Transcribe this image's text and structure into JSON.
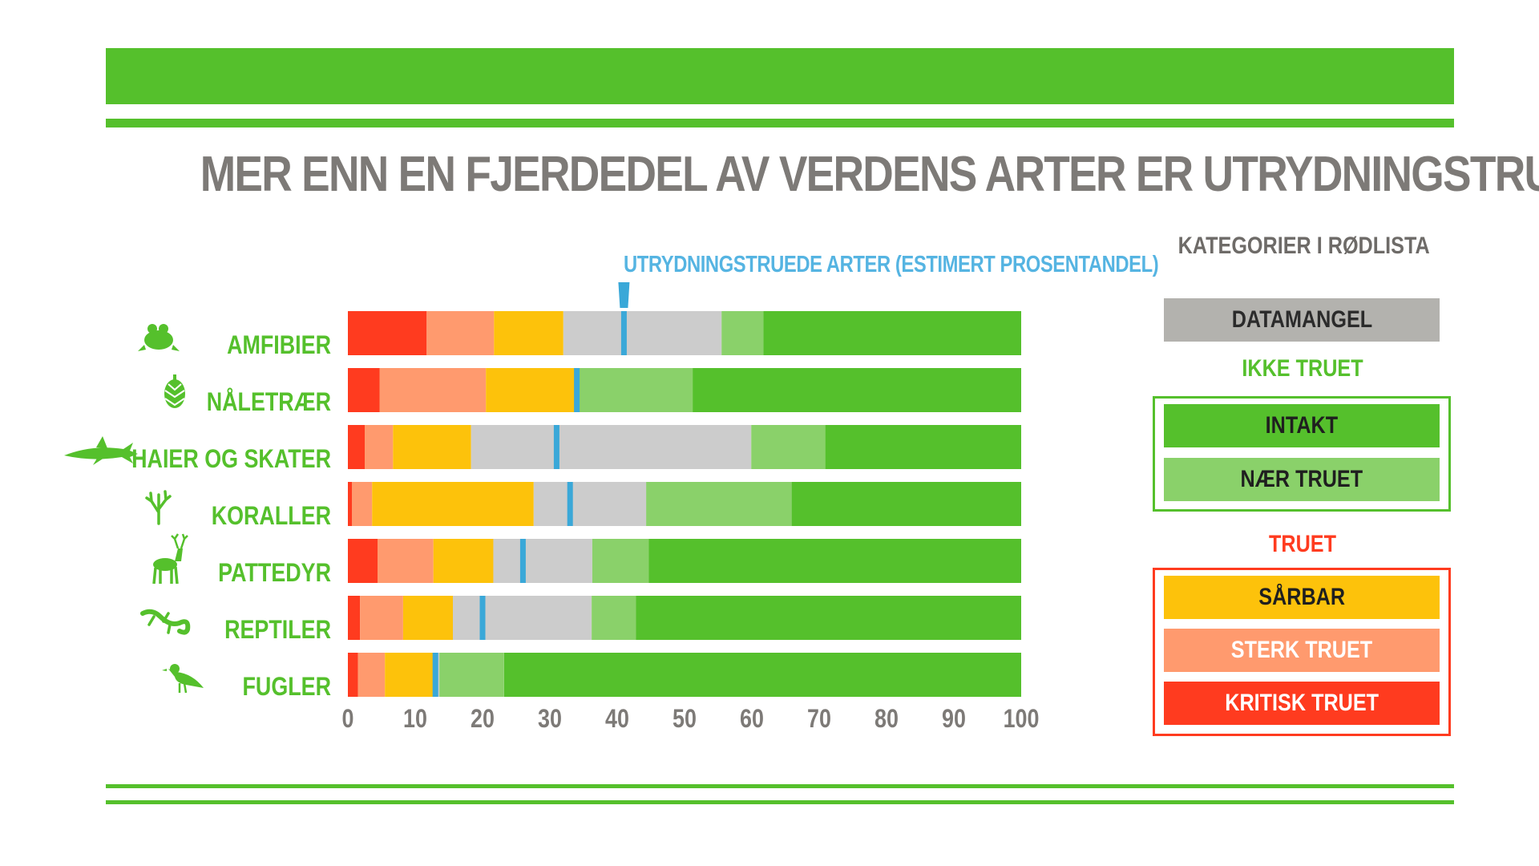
{
  "title": "MER ENN EN FJERDEDEL AV VERDENS ARTER ER UTRYDNINGSTRUET",
  "annotation": "UTRYDNINGSTRUEDE ARTER (ESTIMERT PROSENTANDEL)",
  "legend": {
    "heading": "KATEGORIER I RØDLISTA",
    "datamangel": "DATAMANGEL",
    "ikke_truet": "IKKE TRUET",
    "intakt": "INTAKT",
    "naer_truet": "NÆR TRUET",
    "truet": "TRUET",
    "sarbar": "SÅRBAR",
    "sterk_truet": "STERK TRUET",
    "kritisk_truet": "KRITISK TRUET"
  },
  "colors": {
    "accent_green": "#55c02c",
    "kritisk": "#ff3b1f",
    "sterk": "#ff9a6e",
    "sarbar": "#fdc20b",
    "datamangel": "#cccccc",
    "datamangel_legend": "#b3b2ae",
    "naer": "#8ad16a",
    "intakt": "#55c02c",
    "marker": "#3aa8d8",
    "title": "#7d7a77",
    "axis_text": "#7d7a77"
  },
  "chart_data": {
    "type": "bar",
    "orientation": "horizontal",
    "stacked": true,
    "categories": [
      "AMFIBIER",
      "NÅLETRÆR",
      "HAIER OG SKATER",
      "KORALLER",
      "PATTEDYR",
      "REPTILER",
      "FUGLER"
    ],
    "icons": [
      "frog-icon",
      "pinecone-icon",
      "shark-icon",
      "coral-icon",
      "deer-icon",
      "lizard-icon",
      "bird-icon"
    ],
    "series": [
      {
        "name": "KRITISK TRUET",
        "color": "#ff3b1f",
        "values": [
          11.7,
          4.7,
          2.5,
          0.6,
          4.4,
          1.8,
          1.5
        ]
      },
      {
        "name": "STERK TRUET",
        "color": "#ff9a6e",
        "values": [
          10.0,
          15.8,
          4.2,
          3.0,
          8.3,
          6.4,
          4.0
        ]
      },
      {
        "name": "SÅRBAR",
        "color": "#fdc20b",
        "values": [
          10.3,
          13.8,
          11.6,
          24.0,
          8.9,
          7.4,
          7.4
        ]
      },
      {
        "name": "DATAMANGEL",
        "color": "#cccccc",
        "values": [
          23.5,
          0.0,
          41.6,
          16.7,
          14.7,
          20.6,
          0.7
        ]
      },
      {
        "name": "NÆR TRUET",
        "color": "#8ad16a",
        "values": [
          6.2,
          16.9,
          11.0,
          21.6,
          8.4,
          6.6,
          9.6
        ]
      },
      {
        "name": "INTAKT",
        "color": "#55c02c",
        "values": [
          38.3,
          48.8,
          29.1,
          34.1,
          55.3,
          57.2,
          76.8
        ]
      }
    ],
    "threatened_estimate": [
      41,
      34,
      31,
      33,
      26,
      20,
      13
    ],
    "xticks": [
      0,
      10,
      20,
      30,
      40,
      50,
      60,
      70,
      80,
      90,
      100
    ],
    "xlim": [
      0,
      100
    ],
    "xlabel": "",
    "ylabel": "",
    "grid": false,
    "legend_position": "right"
  }
}
